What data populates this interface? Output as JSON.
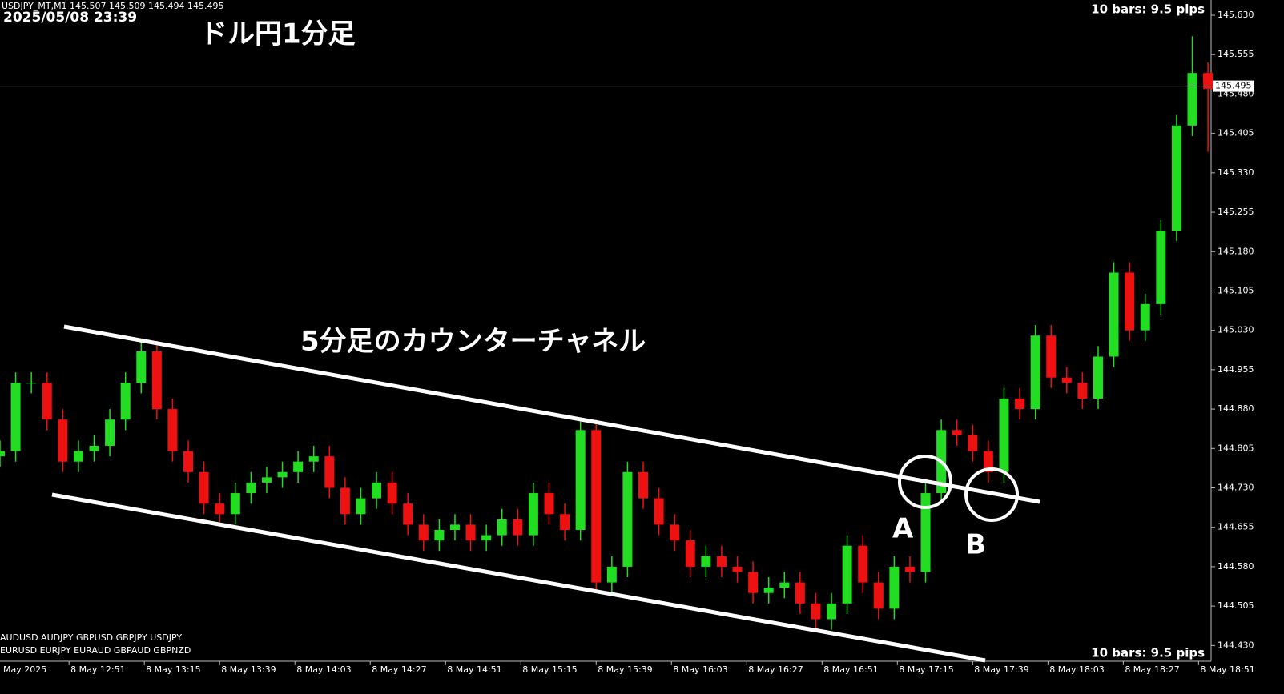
{
  "chart_data": {
    "type": "candlestick",
    "header": "USDJPY_MT,M1  145.507 145.509 145.494 145.495",
    "timestamp": "2025/05/08 23:39",
    "title": "ドル円1分足",
    "annotation": "5分足のカウンターチャネル",
    "marker_a": "A",
    "marker_b": "B",
    "bars_info_top": "10 bars: 9.5 pips",
    "bars_info_bottom": "10 bars: 9.5 pips",
    "symbols_row1": "AUDUSD  AUDJPY  GBPUSD GBPJPY  USDJPY",
    "symbols_row2": "EURUSD  EURJPY  EURAUD  GBPAUD  GBPNZD",
    "up_color": "#22dd22",
    "down_color": "#ee1111",
    "current_price": 145.495,
    "x": [
      -22,
      -17,
      -12,
      -7,
      -2,
      3,
      8,
      13,
      18,
      23,
      28,
      33,
      38,
      43,
      48,
      53,
      58,
      63,
      68,
      73,
      78,
      83,
      88,
      93,
      98,
      103,
      108,
      113,
      118,
      123,
      128,
      133,
      138,
      143,
      148,
      153,
      158,
      163,
      168,
      173,
      178,
      183,
      188,
      193,
      198,
      203,
      208,
      213,
      218,
      223,
      228,
      233,
      238,
      243,
      248,
      253,
      258,
      263,
      268,
      273,
      278,
      283,
      288,
      293,
      298,
      303,
      308,
      313,
      318,
      323,
      328,
      333,
      338,
      343,
      348,
      353,
      358,
      363
    ],
    "open": [
      144.79,
      144.8,
      144.93,
      144.93,
      144.86,
      144.78,
      144.8,
      144.81,
      144.86,
      144.93,
      144.99,
      144.88,
      144.8,
      144.76,
      144.7,
      144.68,
      144.72,
      144.74,
      144.75,
      144.76,
      144.78,
      144.79,
      144.73,
      144.68,
      144.71,
      144.74,
      144.7,
      144.66,
      144.63,
      144.65,
      144.66,
      144.63,
      144.64,
      144.67,
      144.64,
      144.72,
      144.68,
      144.65,
      144.84,
      144.55,
      144.58,
      144.76,
      144.71,
      144.66,
      144.63,
      144.58,
      144.6,
      144.58,
      144.57,
      144.53,
      144.54,
      144.55,
      144.51,
      144.48,
      144.51,
      144.62,
      144.55,
      144.5,
      144.58,
      144.57,
      144.72,
      144.84,
      144.83,
      144.8,
      144.76,
      144.9,
      144.88,
      145.02,
      144.94,
      144.93,
      144.9,
      144.98,
      145.14,
      145.03,
      145.08,
      145.22,
      145.42,
      145.52
    ],
    "high": [
      144.82,
      144.95,
      144.95,
      144.95,
      144.88,
      144.82,
      144.83,
      144.88,
      144.95,
      145.01,
      145.01,
      144.9,
      144.82,
      144.78,
      144.72,
      144.74,
      144.76,
      144.77,
      144.78,
      144.8,
      144.81,
      144.81,
      144.75,
      144.73,
      144.76,
      144.76,
      144.72,
      144.68,
      144.67,
      144.68,
      144.68,
      144.66,
      144.69,
      144.69,
      144.74,
      144.74,
      144.7,
      144.86,
      144.86,
      144.6,
      144.78,
      144.78,
      144.73,
      144.68,
      144.65,
      144.62,
      144.62,
      144.6,
      144.59,
      144.56,
      144.57,
      144.57,
      144.53,
      144.53,
      144.64,
      144.64,
      144.57,
      144.6,
      144.6,
      144.74,
      144.86,
      144.86,
      144.85,
      144.82,
      144.92,
      144.92,
      145.04,
      145.04,
      144.96,
      144.95,
      145.0,
      145.16,
      145.16,
      145.1,
      145.24,
      145.44,
      145.59,
      145.54
    ],
    "low": [
      144.77,
      144.78,
      144.91,
      144.84,
      144.76,
      144.76,
      144.78,
      144.79,
      144.84,
      144.91,
      144.86,
      144.78,
      144.74,
      144.68,
      144.66,
      144.66,
      144.7,
      144.72,
      144.73,
      144.74,
      144.76,
      144.71,
      144.66,
      144.66,
      144.69,
      144.68,
      144.64,
      144.61,
      144.61,
      144.63,
      144.61,
      144.61,
      144.62,
      144.62,
      144.62,
      144.66,
      144.63,
      144.63,
      144.53,
      144.53,
      144.56,
      144.69,
      144.64,
      144.61,
      144.56,
      144.56,
      144.56,
      144.55,
      144.51,
      144.51,
      144.52,
      144.49,
      144.46,
      144.46,
      144.49,
      144.53,
      144.48,
      144.48,
      144.55,
      144.55,
      144.7,
      144.81,
      144.78,
      144.74,
      144.74,
      144.86,
      144.86,
      144.92,
      144.91,
      144.88,
      144.88,
      144.96,
      145.01,
      145.01,
      145.06,
      145.2,
      145.4,
      145.37
    ],
    "close": [
      144.8,
      144.93,
      144.93,
      144.86,
      144.78,
      144.8,
      144.81,
      144.86,
      144.93,
      144.99,
      144.88,
      144.8,
      144.76,
      144.7,
      144.68,
      144.72,
      144.74,
      144.75,
      144.76,
      144.78,
      144.79,
      144.73,
      144.68,
      144.71,
      144.74,
      144.7,
      144.66,
      144.63,
      144.65,
      144.66,
      144.63,
      144.64,
      144.67,
      144.64,
      144.72,
      144.68,
      144.65,
      144.84,
      144.55,
      144.58,
      144.76,
      144.71,
      144.66,
      144.63,
      144.58,
      144.6,
      144.58,
      144.57,
      144.53,
      144.54,
      144.55,
      144.51,
      144.48,
      144.51,
      144.62,
      144.55,
      144.5,
      144.58,
      144.57,
      144.72,
      144.84,
      144.83,
      144.8,
      144.76,
      144.9,
      144.88,
      145.02,
      144.94,
      144.93,
      144.9,
      144.98,
      145.14,
      145.03,
      145.08,
      145.22,
      145.42,
      145.52,
      145.49
    ],
    "xlim": [
      -22,
      364
    ],
    "xticks": [
      {
        "value": -24,
        "label": "May 2025"
      },
      {
        "value": 0,
        "label": "8 May 12:51"
      },
      {
        "value": 24,
        "label": "8 May 13:15"
      },
      {
        "value": 48,
        "label": "8 May 13:39"
      },
      {
        "value": 72,
        "label": "8 May 14:03"
      },
      {
        "value": 96,
        "label": "8 May 14:27"
      },
      {
        "value": 120,
        "label": "8 May 14:51"
      },
      {
        "value": 144,
        "label": "8 May 15:15"
      },
      {
        "value": 168,
        "label": "8 May 15:39"
      },
      {
        "value": 192,
        "label": "8 May 16:03"
      },
      {
        "value": 216,
        "label": "8 May 16:27"
      },
      {
        "value": 240,
        "label": "8 May 16:51"
      },
      {
        "value": 264,
        "label": "8 May 17:15"
      },
      {
        "value": 288,
        "label": "8 May 17:39"
      },
      {
        "value": 312,
        "label": "8 May 18:03"
      },
      {
        "value": 336,
        "label": "8 May 18:27"
      },
      {
        "value": 360,
        "label": "8 May 18:51"
      }
    ],
    "ylim": [
      144.4,
      145.659
    ],
    "yticks": [
      {
        "value": 145.63,
        "label": "145.630"
      },
      145.555,
      {
        "value": 145.48,
        "label": "145.480"
      },
      145.405,
      {
        "value": 145.33,
        "label": "145.330"
      },
      145.255,
      {
        "value": 145.18,
        "label": "145.180"
      },
      145.105,
      {
        "value": 145.03,
        "label": "145.030"
      },
      144.955,
      {
        "value": 144.88,
        "label": "144.880"
      },
      144.805,
      {
        "value": 144.73,
        "label": "144.730"
      },
      144.655,
      {
        "value": 144.58,
        "label": "144.580"
      },
      144.505,
      {
        "value": 144.43,
        "label": "144.430"
      }
    ]
  }
}
